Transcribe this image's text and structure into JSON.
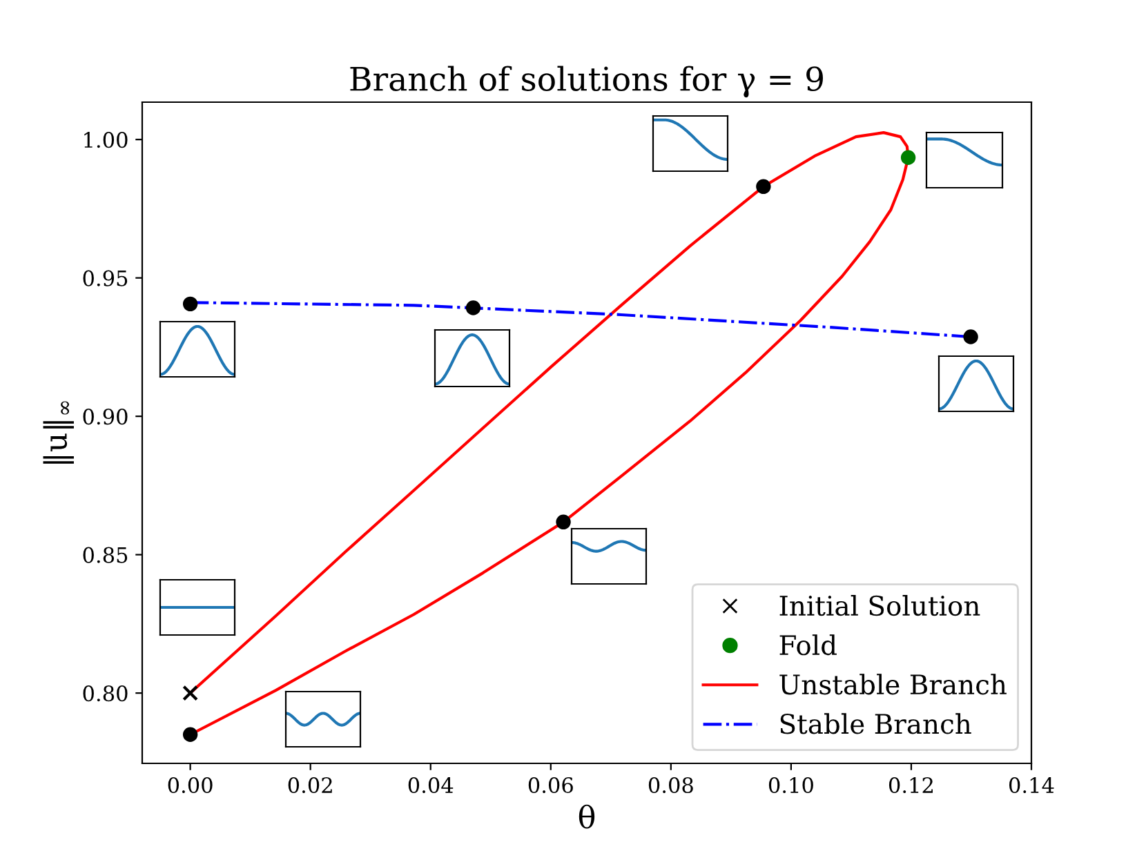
{
  "chart_data": {
    "type": "line",
    "title": "Branch of solutions for γ = 9",
    "xlabel": "θ",
    "ylabel": "‖u‖$_{∞}$",
    "xlim": [
      -0.008,
      0.14
    ],
    "ylim": [
      0.7746,
      1.0135
    ],
    "xticks": [
      {
        "value": 0,
        "label": "0.00"
      },
      {
        "value": 0.02,
        "label": "0.02"
      },
      {
        "value": 0.04,
        "label": "0.04"
      },
      {
        "value": 0.06,
        "label": "0.06"
      },
      {
        "value": 0.08,
        "label": "0.08"
      },
      {
        "value": 0.1,
        "label": "0.10"
      },
      {
        "value": 0.12,
        "label": "0.12"
      },
      {
        "value": 0.14,
        "label": "0.14"
      }
    ],
    "yticks": [
      {
        "value": 0.8,
        "label": "0.80"
      },
      {
        "value": 0.85,
        "label": "0.85"
      },
      {
        "value": 0.9,
        "label": "0.90"
      },
      {
        "value": 0.95,
        "label": "0.95"
      },
      {
        "value": 1.0,
        "label": "1.00"
      }
    ],
    "grid": false,
    "legend": "bottom right",
    "series": [
      {
        "name": "Initial Solution",
        "type": "scatter",
        "color": "#000000",
        "marker": "cross",
        "x": [
          0
        ],
        "values": [
          0.8
        ]
      },
      {
        "name": "Fold",
        "type": "scatter",
        "color": "#008000",
        "marker": "circle",
        "x": [
          0.1195
        ],
        "values": [
          0.9935
        ]
      },
      {
        "name": "Unstable Branch",
        "color": "#ff0000",
        "line_style": "solid",
        "marker": "none",
        "x": [
          0,
          0.01425,
          0.02575,
          0.03724,
          0.04874,
          0.06023,
          0.07172,
          0.08322,
          0.0954,
          0.1039,
          0.1108,
          0.1154,
          0.1182,
          0.1193,
          0.1195,
          0.1186,
          0.1166,
          0.1131,
          0.1085,
          0.1016,
          0.0924,
          0.0832,
          0.0717,
          0.0621,
          0.0487,
          0.0372,
          0.0257,
          0.01425,
          0
        ],
        "values": [
          0.8,
          0.8279,
          0.8509,
          0.8733,
          0.8958,
          0.9182,
          0.9401,
          0.9616,
          0.983,
          0.994,
          1.001,
          1.0025,
          1.001,
          0.9975,
          0.9935,
          0.9855,
          0.9746,
          0.9631,
          0.9506,
          0.9347,
          0.9157,
          0.8983,
          0.8783,
          0.8618,
          0.8434,
          0.8284,
          0.815,
          0.801,
          0.785
        ]
      },
      {
        "name": "Stable Branch",
        "color": "#0000ff",
        "line_style": "dashdot",
        "marker": "none",
        "x": [
          0,
          0.0372,
          0.0717,
          0.1062,
          0.1299
        ],
        "values": [
          0.9411,
          0.9401,
          0.9367,
          0.9322,
          0.9287
        ]
      },
      {
        "type": "scatter",
        "color": "#000000",
        "marker": "circle",
        "x": [
          0,
          0.0471,
          0.1299,
          0.0954,
          0.0621,
          0
        ],
        "values": [
          0.9406,
          0.9392,
          0.9287,
          0.983,
          0.8618,
          0.785
        ]
      }
    ]
  }
}
